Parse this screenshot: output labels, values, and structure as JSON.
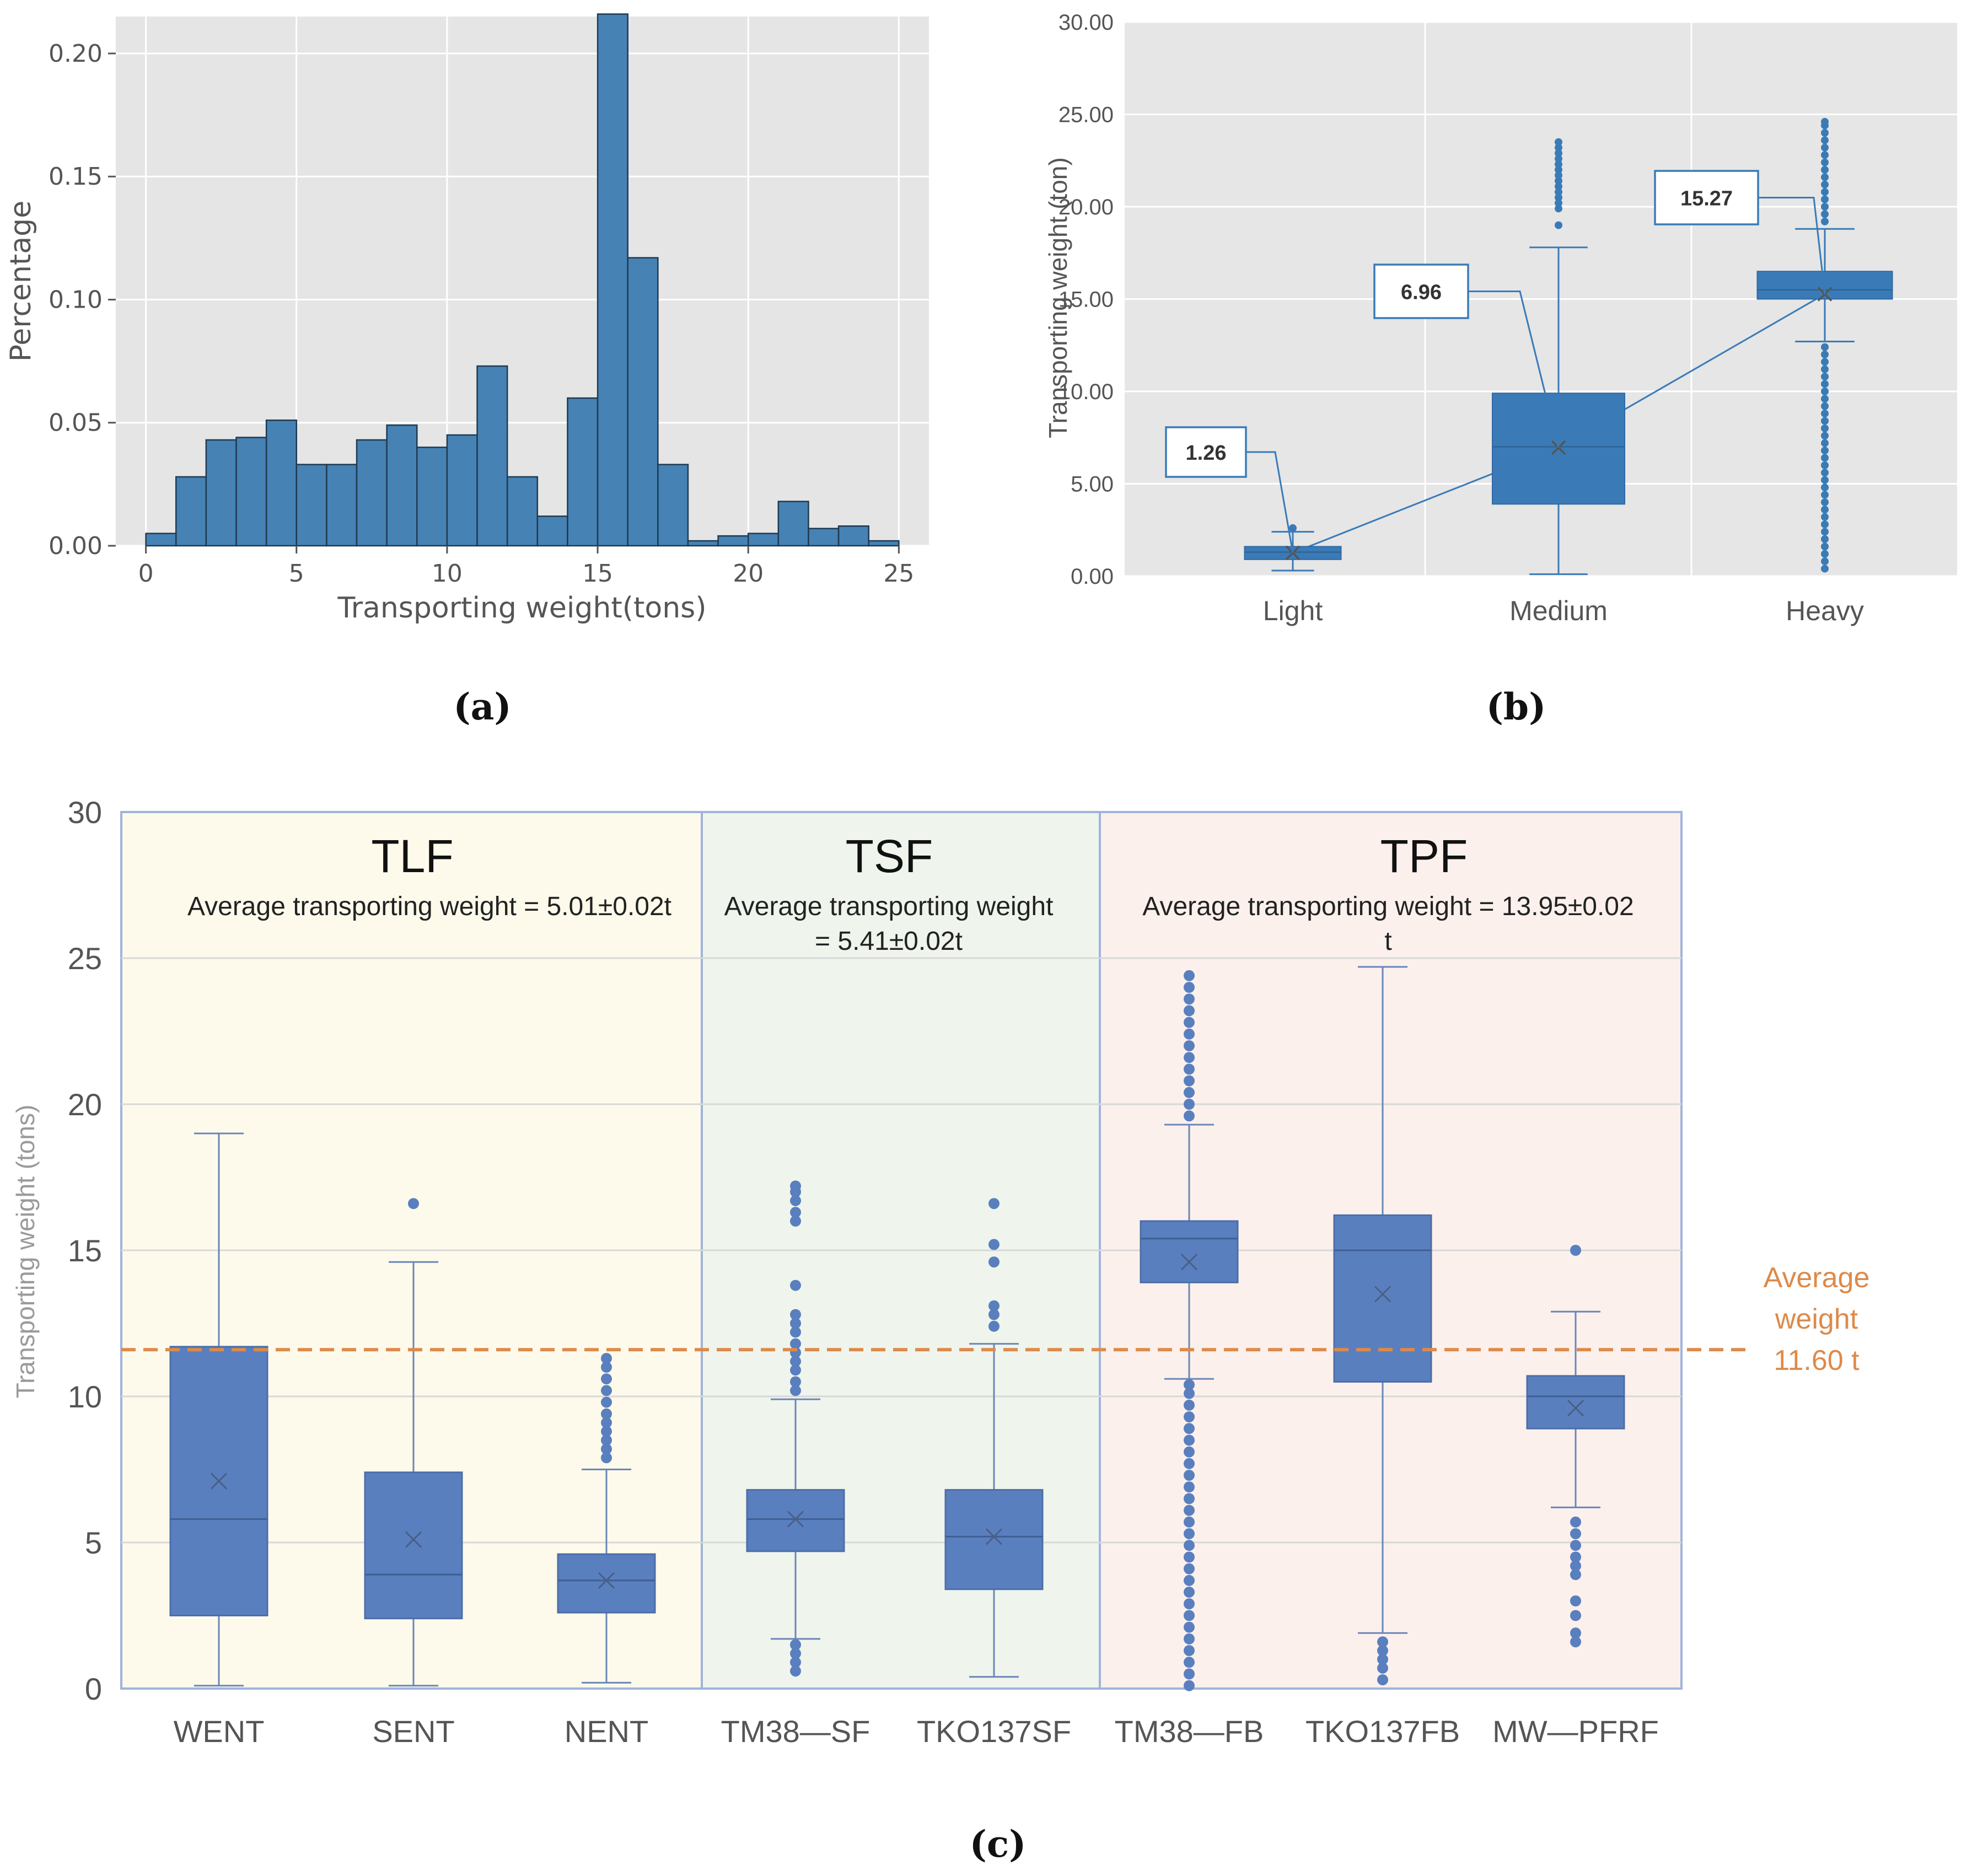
{
  "chart_data": [
    {
      "type": "bar",
      "panel_label": "(a)",
      "xlabel": "Transporting weight(tons)",
      "ylabel": "Percentage",
      "xlim": [
        -1,
        26
      ],
      "ylim": [
        0,
        0.215
      ],
      "xticks": [
        0,
        5,
        10,
        15,
        20,
        25
      ],
      "xtick_labels": [
        "0",
        "5",
        "10",
        "15",
        "20",
        "25"
      ],
      "yticks": [
        0,
        0.05,
        0.1,
        0.15,
        0.2
      ],
      "ytick_labels": [
        "0.00",
        "0.05",
        "0.10",
        "0.15",
        "0.20"
      ],
      "bin_edges": [
        0,
        1,
        2,
        3,
        4,
        5,
        6,
        7,
        8,
        9,
        10,
        11,
        12,
        13,
        14,
        15,
        16,
        17,
        18,
        19,
        20,
        21,
        22,
        23,
        24,
        25
      ],
      "values": [
        0.005,
        0.028,
        0.043,
        0.044,
        0.051,
        0.033,
        0.033,
        0.043,
        0.049,
        0.04,
        0.045,
        0.073,
        0.028,
        0.012,
        0.06,
        0.216,
        0.117,
        0.033,
        0.002,
        0.004,
        0.005,
        0.018,
        0.007,
        0.008,
        0.002
      ],
      "bar_color": "#4682b4",
      "grid": true
    },
    {
      "type": "box",
      "panel_label": "(b)",
      "ylabel": "Transporting weight (ton)",
      "ylim": [
        0,
        30
      ],
      "yticks": [
        0,
        5,
        10,
        15,
        20,
        25,
        30
      ],
      "ytick_labels": [
        "0.00",
        "5.00",
        "10.00",
        "15.00",
        "20.00",
        "25.00",
        "30.00"
      ],
      "categories": [
        "Light",
        "Medium",
        "Heavy"
      ],
      "boxes": [
        {
          "min": 0.3,
          "q1": 0.9,
          "median": 1.3,
          "q3": 1.6,
          "max": 2.4,
          "mean": 1.26,
          "mean_label": "1.26",
          "outliers": [
            2.6
          ]
        },
        {
          "min": 0.1,
          "q1": 3.9,
          "median": 7.0,
          "q3": 9.9,
          "max": 17.8,
          "mean": 6.96,
          "mean_label": "6.96",
          "outliers": [
            19.0,
            19.9,
            20.2,
            20.5,
            20.8,
            21.1,
            21.4,
            21.7,
            22.0,
            22.3,
            22.6,
            22.9,
            23.2,
            23.5
          ]
        },
        {
          "min": 12.7,
          "q1": 15.0,
          "median": 15.5,
          "q3": 16.5,
          "max": 18.8,
          "mean": 15.27,
          "mean_label": "15.27",
          "outliers": [
            0.4,
            0.8,
            1.2,
            1.6,
            2.0,
            2.4,
            2.8,
            3.2,
            3.6,
            4.0,
            4.4,
            4.8,
            5.2,
            5.6,
            6.0,
            6.4,
            6.8,
            7.2,
            7.6,
            8.0,
            8.4,
            8.8,
            9.2,
            9.6,
            10.0,
            10.4,
            10.8,
            11.2,
            11.6,
            12.0,
            12.4,
            19.2,
            19.6,
            20.0,
            20.4,
            20.8,
            21.2,
            21.6,
            22.0,
            22.4,
            22.8,
            23.2,
            23.6,
            24.0,
            24.4,
            24.6
          ]
        }
      ],
      "box_color": "#3a7bb7",
      "grid": true
    },
    {
      "type": "box",
      "panel_label": "(c)",
      "ylabel": "Transporting weight (tons)",
      "ylim": [
        0,
        30
      ],
      "yticks": [
        0,
        5,
        10,
        15,
        20,
        25,
        30
      ],
      "ytick_labels": [
        "0",
        "5",
        "10",
        "15",
        "20",
        "25",
        "30"
      ],
      "categories": [
        "WENT",
        "SENT",
        "NENT",
        "TM38—SF",
        "TKO137SF",
        "TM38—FB",
        "TKO137FB",
        "MW—PFRF"
      ],
      "groups": [
        {
          "title": "TLF",
          "subtitle_lines": [
            "Average transporting weight = 5.01±0.02t"
          ],
          "members": [
            0,
            1,
            2
          ],
          "fill": "#fdfaeb"
        },
        {
          "title": "TSF",
          "subtitle_lines": [
            "Average transporting weight",
            "= 5.41±0.02t"
          ],
          "members": [
            3,
            4
          ],
          "fill": "#eff5ec"
        },
        {
          "title": "TPF",
          "subtitle_lines": [
            "Average transporting weight = 13.95±0.02",
            "t"
          ],
          "members": [
            5,
            6,
            7
          ],
          "fill": "#fbf0ec"
        }
      ],
      "boxes": [
        {
          "min": 0.1,
          "q1": 2.5,
          "median": 5.8,
          "q3": 11.7,
          "max": 19.0,
          "mean": 7.1,
          "outliers": []
        },
        {
          "min": 0.1,
          "q1": 2.4,
          "median": 3.9,
          "q3": 7.4,
          "max": 14.6,
          "mean": 5.1,
          "outliers": [
            16.6
          ]
        },
        {
          "min": 0.2,
          "q1": 2.6,
          "median": 3.7,
          "q3": 4.6,
          "max": 7.5,
          "mean": 3.7,
          "outliers": [
            7.9,
            8.2,
            8.5,
            8.8,
            9.1,
            9.4,
            9.8,
            10.2,
            10.6,
            11.0,
            11.3
          ]
        },
        {
          "min": 1.7,
          "q1": 4.7,
          "median": 5.8,
          "q3": 6.8,
          "max": 9.9,
          "mean": 5.8,
          "outliers": [
            0.6,
            0.9,
            1.2,
            1.5,
            10.2,
            10.5,
            10.9,
            11.2,
            11.5,
            11.8,
            12.2,
            12.5,
            12.8,
            13.8,
            16.0,
            16.3,
            16.7,
            17.0,
            17.2
          ]
        },
        {
          "min": 0.4,
          "q1": 3.4,
          "median": 5.2,
          "q3": 6.8,
          "max": 11.8,
          "mean": 5.2,
          "outliers": [
            12.4,
            12.8,
            13.1,
            14.6,
            15.2,
            16.6
          ]
        },
        {
          "min": 10.6,
          "q1": 13.9,
          "median": 15.4,
          "q3": 16.0,
          "max": 19.3,
          "mean": 14.6,
          "outliers": [
            0.1,
            0.5,
            0.9,
            1.3,
            1.7,
            2.1,
            2.5,
            2.9,
            3.3,
            3.7,
            4.1,
            4.5,
            4.9,
            5.3,
            5.7,
            6.1,
            6.5,
            6.9,
            7.3,
            7.7,
            8.1,
            8.5,
            8.9,
            9.3,
            9.7,
            10.1,
            10.4,
            19.6,
            20.0,
            20.4,
            20.8,
            21.2,
            21.6,
            22.0,
            22.4,
            22.8,
            23.2,
            23.6,
            24.0,
            24.4
          ]
        },
        {
          "min": 1.9,
          "q1": 10.5,
          "median": 15.0,
          "q3": 16.2,
          "max": 24.7,
          "mean": 13.5,
          "outliers": [
            0.3,
            0.7,
            1.0,
            1.3,
            1.6
          ]
        },
        {
          "min": 6.2,
          "q1": 8.9,
          "median": 10.0,
          "q3": 10.7,
          "max": 12.9,
          "mean": 9.6,
          "outliers": [
            1.6,
            1.9,
            2.5,
            3.0,
            3.9,
            4.2,
            4.5,
            4.9,
            5.3,
            5.7,
            15.0
          ]
        }
      ],
      "reference_line": {
        "value": 11.6,
        "label_lines": [
          "Average",
          "weight",
          "11.60 t"
        ],
        "color": "#dd8a4a",
        "style": "dashed"
      },
      "box_color": "#5a7fbf"
    }
  ]
}
